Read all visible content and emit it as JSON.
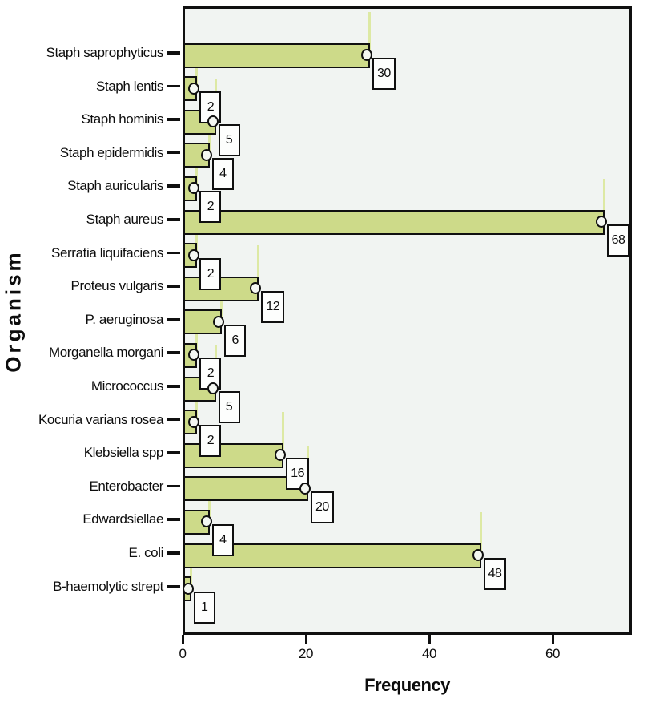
{
  "chart_data": {
    "type": "bar",
    "orientation": "horizontal",
    "title": "",
    "xlabel": "Frequency",
    "ylabel": "Organism",
    "xlim": [
      0,
      73
    ],
    "xticks": [
      0,
      20,
      40,
      60
    ],
    "grid": false,
    "legend": false,
    "categories": [
      "Staph saprophyticus",
      "Staph lentis",
      "Staph hominis",
      "Staph epidermidis",
      "Staph auricularis",
      "Staph aureus",
      "Serratia liquifaciens",
      "Proteus vulgaris",
      "P. aeruginosa",
      "Morganella morgani",
      "Micrococcus",
      "Kocuria varians rosea",
      "Klebsiella spp",
      "Enterobacter",
      "Edwardsiellae",
      "E. coli",
      "B-haemolytic strept"
    ],
    "values": [
      30,
      2,
      5,
      4,
      2,
      68,
      2,
      12,
      6,
      2,
      5,
      2,
      16,
      20,
      4,
      48,
      1
    ],
    "value_labels": [
      "30",
      "2",
      "5",
      "4",
      "2",
      "68",
      "2",
      "12",
      "6",
      "2",
      "5",
      "2",
      "16",
      "20",
      "4",
      "48",
      "1"
    ],
    "colors": {
      "bar_fill": "#cdda89",
      "bar_border": "#101010",
      "whisker": "#dde9a4",
      "plot_background": "#f1f4f2",
      "page_background": "#ffffff",
      "ink": "#0d0d0d",
      "marker_fill": "#f4f7f2",
      "value_box_background": "#fdfefd"
    }
  }
}
